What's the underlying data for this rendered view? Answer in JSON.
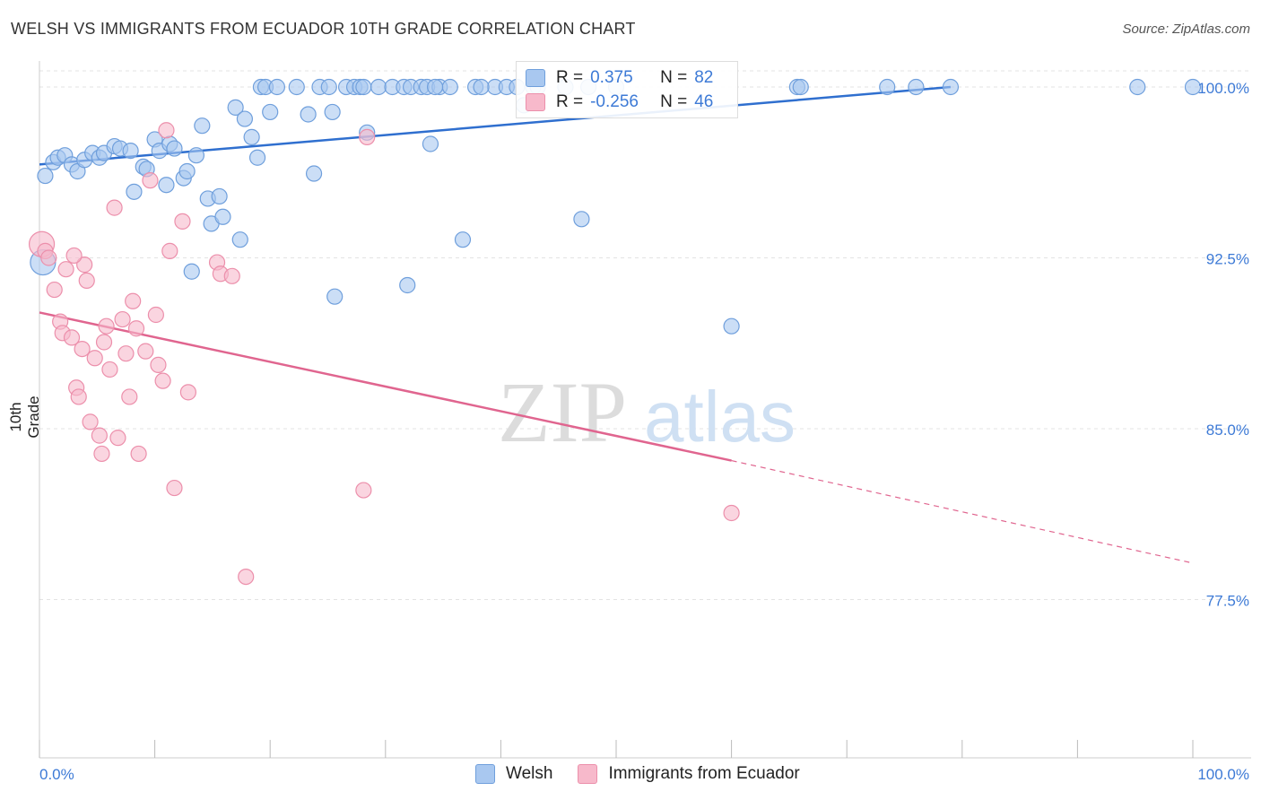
{
  "title": "WELSH VS IMMIGRANTS FROM ECUADOR 10TH GRADE CORRELATION CHART",
  "source": "Source: ZipAtlas.com",
  "watermark": {
    "zip": "ZIP",
    "atlas": "atlas"
  },
  "legend": {
    "rows": [
      {
        "r_label": "R =",
        "r_value": "0.375",
        "n_label": "N =",
        "n_value": "82"
      },
      {
        "r_label": "R =",
        "r_value": "-0.256",
        "n_label": "N =",
        "n_value": "46"
      }
    ]
  },
  "bottom_legend": {
    "welsh": "Welsh",
    "ecuador": "Immigrants from Ecuador"
  },
  "colors": {
    "welsh_fill": "#a9c8f0",
    "welsh_stroke": "#6f9fdc",
    "welsh_line": "#2f6fcf",
    "ecuador_fill": "#f7b9cb",
    "ecuador_stroke": "#ec8fab",
    "ecuador_line": "#e0658f",
    "axis_text": "#3d7ad6",
    "grid": "#e3e3e3"
  },
  "chart_data": {
    "type": "scatter",
    "ylabel": "10th Grade",
    "xlabel": "",
    "xlim": [
      0,
      100
    ],
    "ylim": [
      70.0,
      101.5
    ],
    "x_tick_labels": [
      "0.0%",
      "100.0%"
    ],
    "y_ticks": [
      77.5,
      85.0,
      92.5,
      100.0
    ],
    "y_tick_labels": [
      "77.5%",
      "85.0%",
      "92.5%",
      "100.0%"
    ],
    "grid": true,
    "series": [
      {
        "name": "Welsh",
        "trend": {
          "x": [
            0,
            79
          ],
          "y": [
            96.6,
            100.0
          ]
        },
        "points": [
          [
            0.3,
            92.3
          ],
          [
            0.5,
            96.1
          ],
          [
            1.2,
            96.7
          ],
          [
            1.6,
            96.9
          ],
          [
            2.2,
            97.0
          ],
          [
            2.8,
            96.6
          ],
          [
            3.3,
            96.3
          ],
          [
            3.9,
            96.8
          ],
          [
            4.6,
            97.1
          ],
          [
            5.2,
            96.9
          ],
          [
            5.6,
            97.1
          ],
          [
            6.5,
            97.4
          ],
          [
            7.0,
            97.3
          ],
          [
            7.9,
            97.2
          ],
          [
            8.2,
            95.4
          ],
          [
            9.0,
            96.5
          ],
          [
            9.3,
            96.4
          ],
          [
            10.0,
            97.7
          ],
          [
            10.4,
            97.2
          ],
          [
            11.0,
            95.7
          ],
          [
            11.3,
            97.5
          ],
          [
            11.7,
            97.3
          ],
          [
            12.5,
            96.0
          ],
          [
            12.8,
            96.3
          ],
          [
            13.2,
            91.9
          ],
          [
            13.6,
            97.0
          ],
          [
            14.1,
            98.3
          ],
          [
            14.6,
            95.1
          ],
          [
            14.9,
            94.0
          ],
          [
            15.6,
            95.2
          ],
          [
            15.9,
            94.3
          ],
          [
            17.0,
            99.1
          ],
          [
            17.4,
            93.3
          ],
          [
            17.8,
            98.6
          ],
          [
            18.4,
            97.8
          ],
          [
            18.9,
            96.9
          ],
          [
            19.2,
            100.0
          ],
          [
            19.6,
            100.0
          ],
          [
            20.0,
            98.9
          ],
          [
            20.6,
            100.0
          ],
          [
            22.3,
            100.0
          ],
          [
            23.3,
            98.8
          ],
          [
            23.8,
            96.2
          ],
          [
            24.3,
            100.0
          ],
          [
            25.1,
            100.0
          ],
          [
            25.4,
            98.9
          ],
          [
            25.6,
            90.8
          ],
          [
            26.6,
            100.0
          ],
          [
            27.3,
            100.0
          ],
          [
            27.8,
            100.0
          ],
          [
            28.1,
            100.0
          ],
          [
            28.4,
            98.0
          ],
          [
            29.4,
            100.0
          ],
          [
            30.6,
            100.0
          ],
          [
            31.6,
            100.0
          ],
          [
            31.9,
            91.3
          ],
          [
            32.2,
            100.0
          ],
          [
            33.1,
            100.0
          ],
          [
            33.6,
            100.0
          ],
          [
            33.9,
            97.5
          ],
          [
            34.7,
            100.0
          ],
          [
            35.6,
            100.0
          ],
          [
            34.3,
            100.0
          ],
          [
            36.7,
            93.3
          ],
          [
            37.8,
            100.0
          ],
          [
            39.5,
            100.0
          ],
          [
            38.3,
            100.0
          ],
          [
            40.5,
            100.0
          ],
          [
            41.4,
            100.0
          ],
          [
            42.8,
            100.0
          ],
          [
            42.0,
            99.2
          ],
          [
            43.2,
            100.0
          ],
          [
            45.6,
            100.0
          ],
          [
            47.6,
            100.0
          ],
          [
            47.0,
            94.2
          ],
          [
            50.0,
            100.0
          ],
          [
            60.0,
            89.5
          ],
          [
            65.7,
            100.0
          ],
          [
            66.0,
            100.0
          ],
          [
            73.5,
            100.0
          ],
          [
            76.0,
            100.0
          ],
          [
            79.0,
            100.0
          ],
          [
            95.2,
            100.0
          ],
          [
            100.0,
            100.0
          ]
        ]
      },
      {
        "name": "Immigrants from Ecuador",
        "trend": {
          "x": [
            0,
            60
          ],
          "y": [
            90.1,
            83.6
          ]
        },
        "trend_extension": {
          "x": [
            60,
            100
          ],
          "y": [
            83.6,
            79.1
          ]
        },
        "points": [
          [
            0.2,
            93.1
          ],
          [
            0.5,
            92.8
          ],
          [
            0.8,
            92.5
          ],
          [
            1.3,
            91.1
          ],
          [
            1.8,
            89.7
          ],
          [
            2.0,
            89.2
          ],
          [
            2.3,
            92.0
          ],
          [
            2.8,
            89.0
          ],
          [
            3.2,
            86.8
          ],
          [
            3.4,
            86.4
          ],
          [
            3.7,
            88.5
          ],
          [
            3.9,
            92.2
          ],
          [
            4.1,
            91.5
          ],
          [
            4.4,
            85.3
          ],
          [
            4.8,
            88.1
          ],
          [
            5.2,
            84.7
          ],
          [
            5.4,
            83.9
          ],
          [
            5.6,
            88.8
          ],
          [
            5.8,
            89.5
          ],
          [
            6.1,
            87.6
          ],
          [
            6.5,
            94.7
          ],
          [
            6.8,
            84.6
          ],
          [
            7.2,
            89.8
          ],
          [
            7.5,
            88.3
          ],
          [
            7.8,
            86.4
          ],
          [
            8.1,
            90.6
          ],
          [
            8.4,
            89.4
          ],
          [
            8.6,
            83.9
          ],
          [
            9.2,
            88.4
          ],
          [
            9.6,
            95.9
          ],
          [
            10.1,
            90.0
          ],
          [
            10.3,
            87.8
          ],
          [
            10.7,
            87.1
          ],
          [
            11.0,
            98.1
          ],
          [
            11.3,
            92.8
          ],
          [
            11.7,
            82.4
          ],
          [
            12.4,
            94.1
          ],
          [
            12.9,
            86.6
          ],
          [
            15.4,
            92.3
          ],
          [
            15.7,
            91.8
          ],
          [
            16.7,
            91.7
          ],
          [
            17.9,
            78.5
          ],
          [
            28.1,
            82.3
          ],
          [
            28.4,
            97.8
          ],
          [
            60.0,
            81.3
          ],
          [
            3.0,
            92.6
          ]
        ]
      }
    ]
  }
}
